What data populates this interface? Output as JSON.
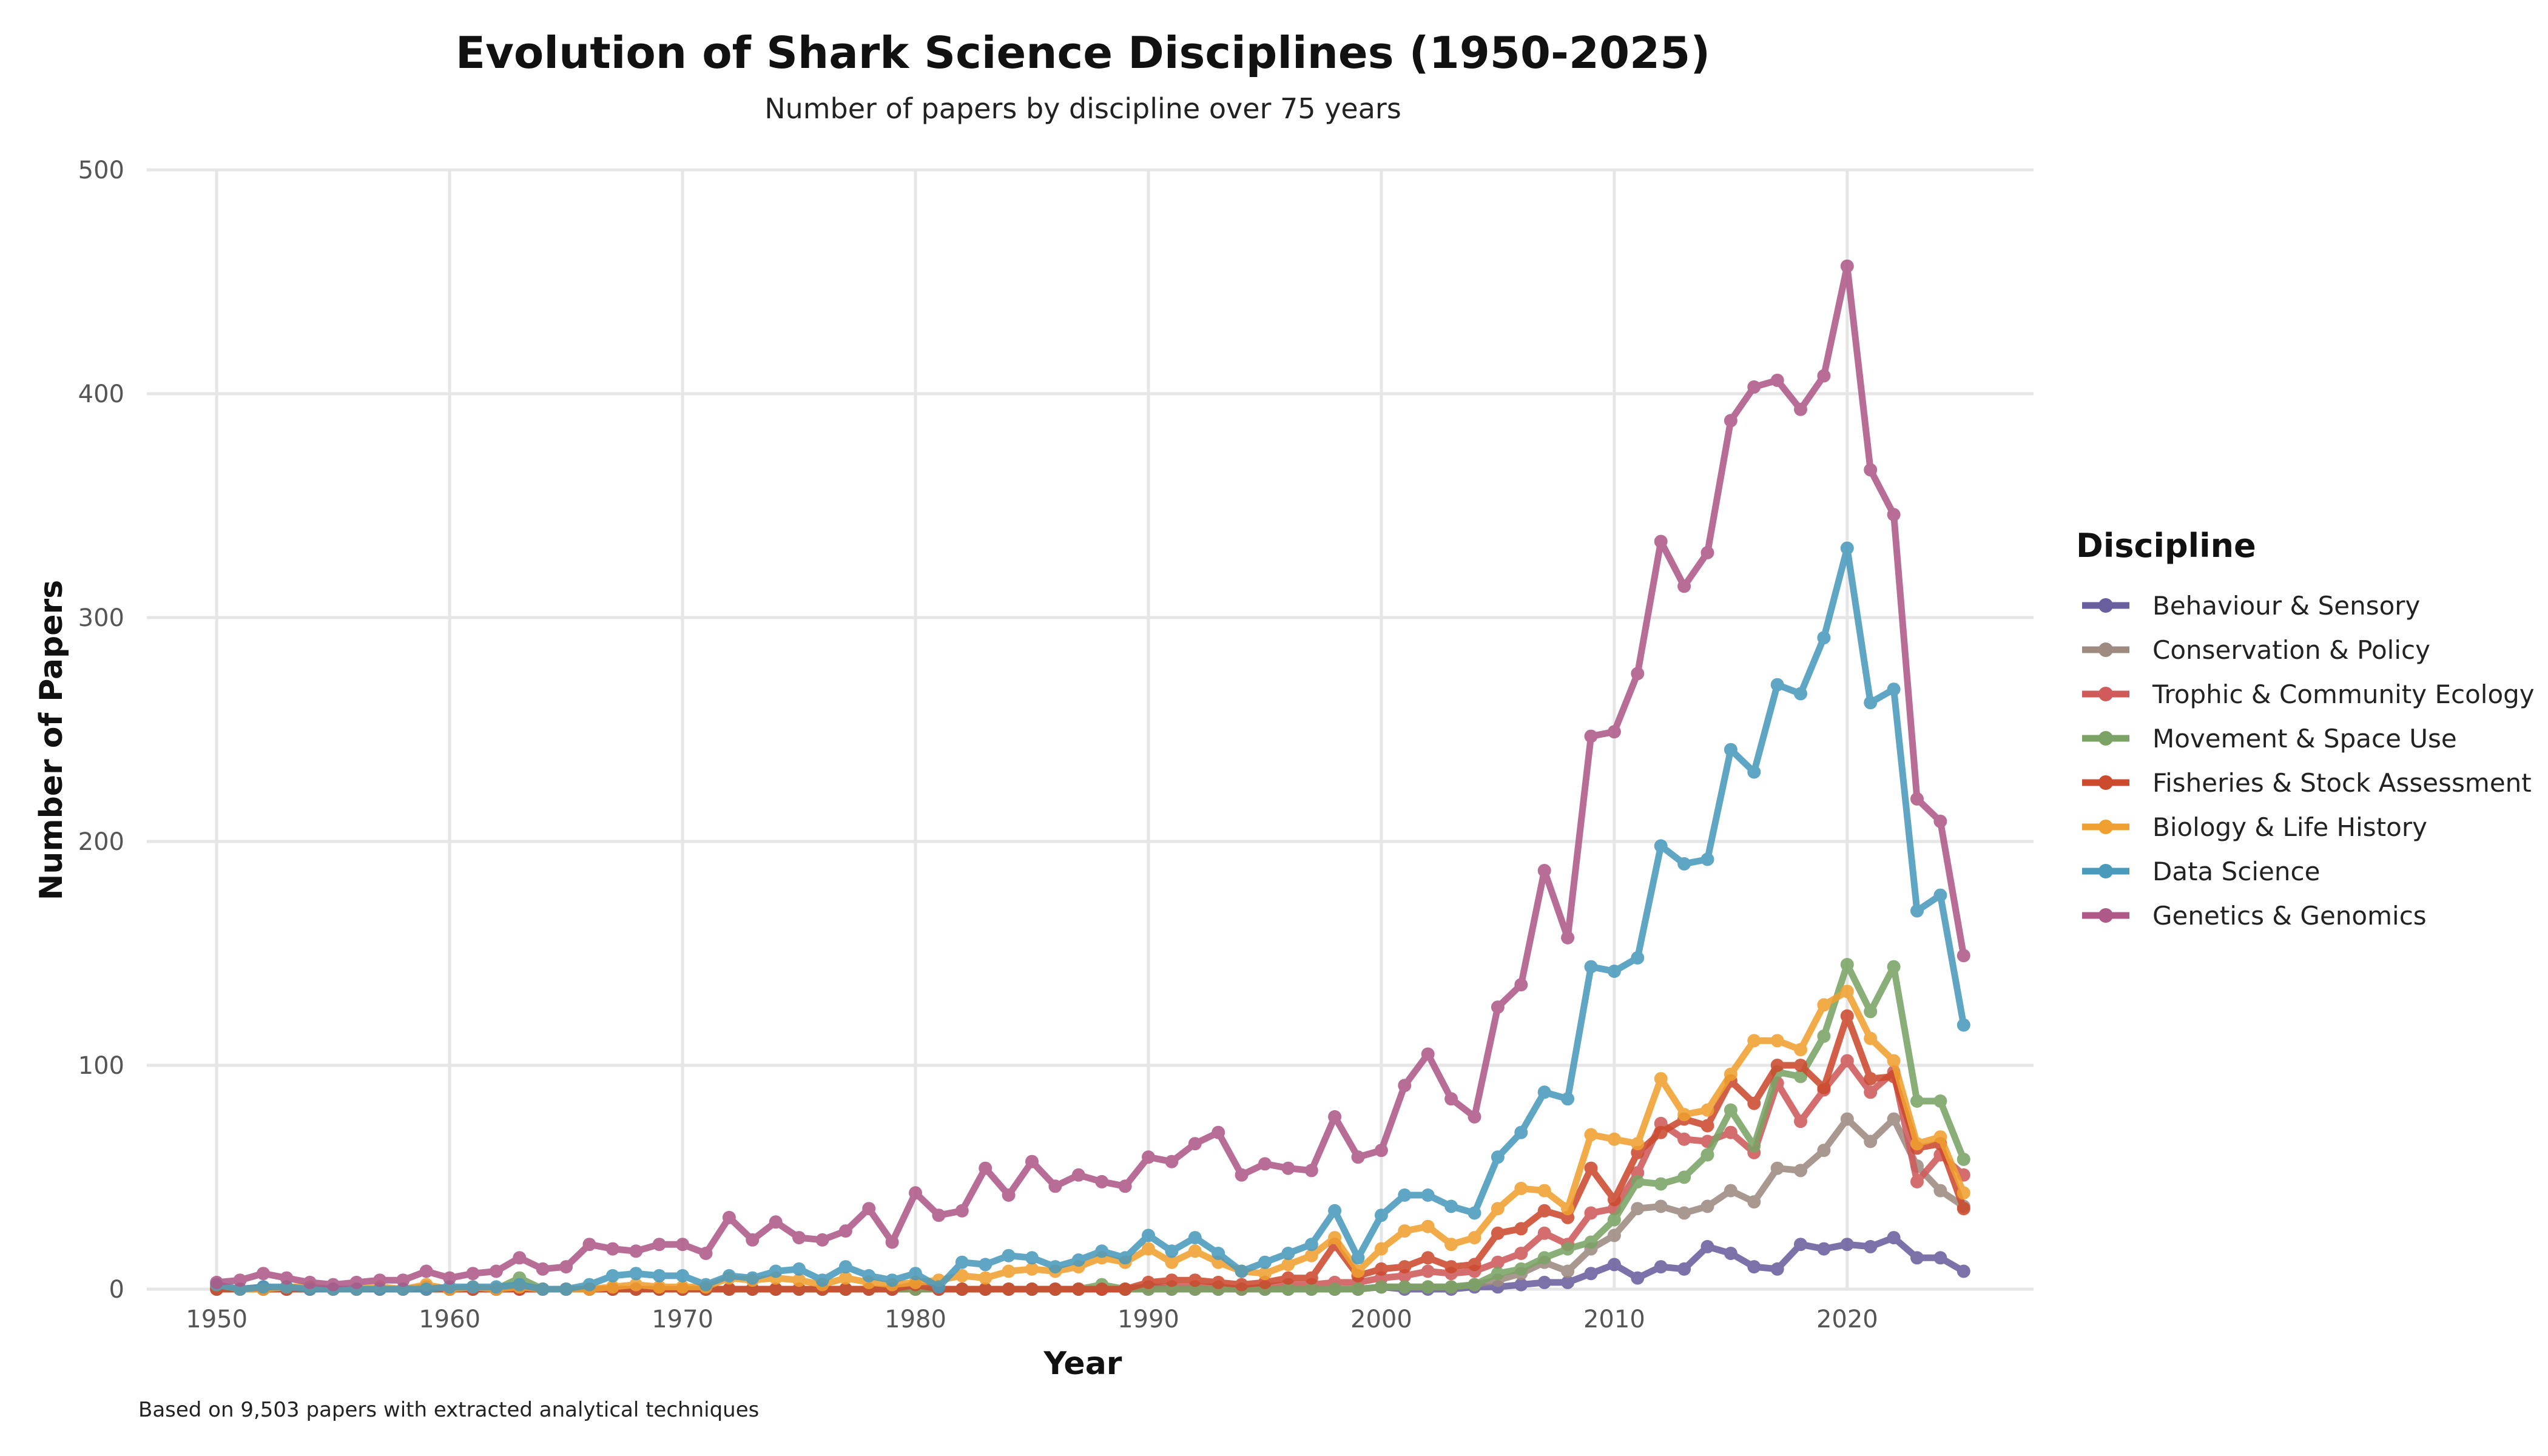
{
  "chart_data": {
    "type": "line",
    "title": "Evolution of Shark Science Disciplines (1950-2025)",
    "subtitle": "Number of papers by discipline over 75 years",
    "xlabel": "Year",
    "ylabel": "Number of Papers",
    "caption": "Based on 9,503 papers with extracted analytical techniques",
    "legend_title": "Discipline",
    "legend_position": "right",
    "grid": true,
    "xlim": [
      1947,
      2028
    ],
    "ylim": [
      0,
      500
    ],
    "x_ticks": [
      1950,
      1960,
      1970,
      1980,
      1990,
      2000,
      2010,
      2020
    ],
    "y_ticks": [
      0,
      100,
      200,
      300,
      400,
      500
    ],
    "x": [
      1950,
      1951,
      1952,
      1953,
      1954,
      1955,
      1956,
      1957,
      1958,
      1959,
      1960,
      1961,
      1962,
      1963,
      1964,
      1965,
      1966,
      1967,
      1968,
      1969,
      1970,
      1971,
      1972,
      1973,
      1974,
      1975,
      1976,
      1977,
      1978,
      1979,
      1980,
      1981,
      1982,
      1983,
      1984,
      1985,
      1986,
      1987,
      1988,
      1989,
      1990,
      1991,
      1992,
      1993,
      1994,
      1995,
      1996,
      1997,
      1998,
      1999,
      2000,
      2001,
      2002,
      2003,
      2004,
      2005,
      2006,
      2007,
      2008,
      2009,
      2010,
      2011,
      2012,
      2013,
      2014,
      2015,
      2016,
      2017,
      2018,
      2019,
      2020,
      2021,
      2022,
      2023,
      2024,
      2025
    ],
    "series": [
      {
        "name": "Behaviour & Sensory",
        "color": "#6a5f9e",
        "values": [
          1,
          0,
          1,
          0,
          0,
          0,
          0,
          0,
          0,
          1,
          0,
          0,
          0,
          1,
          0,
          0,
          0,
          0,
          0,
          0,
          0,
          0,
          0,
          0,
          0,
          0,
          0,
          0,
          0,
          0,
          0,
          0,
          0,
          0,
          0,
          0,
          0,
          0,
          0,
          0,
          1,
          0,
          0,
          0,
          0,
          0,
          0,
          0,
          0,
          0,
          1,
          0,
          0,
          0,
          1,
          1,
          2,
          3,
          3,
          7,
          11,
          5,
          10,
          9,
          19,
          16,
          10,
          9,
          20,
          18,
          20,
          19,
          23,
          14,
          14,
          8
        ]
      },
      {
        "name": "Conservation & Policy",
        "color": "#9e8a80",
        "values": [
          0,
          0,
          0,
          0,
          0,
          0,
          0,
          0,
          0,
          0,
          0,
          0,
          0,
          0,
          0,
          0,
          0,
          0,
          0,
          0,
          0,
          0,
          0,
          0,
          0,
          0,
          0,
          0,
          0,
          0,
          0,
          0,
          0,
          0,
          0,
          0,
          0,
          0,
          0,
          0,
          0,
          0,
          0,
          0,
          0,
          0,
          0,
          0,
          0,
          0,
          1,
          1,
          1,
          1,
          2,
          4,
          7,
          12,
          8,
          18,
          24,
          36,
          37,
          34,
          37,
          44,
          39,
          54,
          53,
          62,
          76,
          66,
          76,
          55,
          44,
          37
        ]
      },
      {
        "name": "Trophic & Community Ecology",
        "color": "#cf5b5b",
        "values": [
          0,
          0,
          0,
          0,
          0,
          0,
          0,
          0,
          0,
          0,
          0,
          0,
          0,
          0,
          0,
          0,
          0,
          0,
          0,
          0,
          0,
          0,
          0,
          0,
          0,
          0,
          0,
          0,
          0,
          0,
          0,
          0,
          0,
          0,
          0,
          0,
          0,
          0,
          0,
          0,
          1,
          1,
          1,
          1,
          0,
          1,
          2,
          2,
          3,
          3,
          5,
          6,
          8,
          7,
          8,
          12,
          16,
          25,
          20,
          34,
          36,
          52,
          74,
          67,
          66,
          70,
          61,
          92,
          75,
          89,
          102,
          88,
          97,
          48,
          60,
          51
        ]
      },
      {
        "name": "Movement & Space Use",
        "color": "#7ba365",
        "values": [
          0,
          0,
          0,
          0,
          0,
          0,
          0,
          0,
          0,
          0,
          0,
          0,
          0,
          5,
          0,
          0,
          0,
          0,
          0,
          0,
          0,
          0,
          0,
          0,
          0,
          0,
          0,
          0,
          0,
          0,
          0,
          0,
          0,
          0,
          0,
          0,
          0,
          0,
          2,
          0,
          0,
          0,
          0,
          0,
          0,
          0,
          0,
          0,
          0,
          0,
          1,
          1,
          1,
          1,
          2,
          7,
          9,
          14,
          18,
          21,
          31,
          48,
          47,
          50,
          60,
          80,
          64,
          97,
          95,
          113,
          145,
          124,
          144,
          84,
          84,
          58
        ]
      },
      {
        "name": "Fisheries & Stock Assessment",
        "color": "#cc4a2e",
        "values": [
          0,
          0,
          0,
          0,
          0,
          0,
          0,
          0,
          0,
          0,
          0,
          0,
          0,
          0,
          0,
          0,
          0,
          0,
          0,
          0,
          0,
          0,
          0,
          0,
          0,
          0,
          0,
          0,
          0,
          0,
          2,
          0,
          0,
          0,
          0,
          0,
          0,
          0,
          0,
          0,
          3,
          4,
          4,
          3,
          2,
          3,
          5,
          5,
          20,
          6,
          9,
          10,
          14,
          10,
          11,
          25,
          27,
          35,
          32,
          54,
          40,
          61,
          70,
          76,
          73,
          93,
          83,
          100,
          100,
          90,
          122,
          94,
          95,
          63,
          65,
          36
        ]
      },
      {
        "name": "Biology & Life History",
        "color": "#f0a030",
        "values": [
          2,
          0,
          0,
          1,
          1,
          0,
          0,
          1,
          0,
          2,
          0,
          1,
          0,
          1,
          0,
          0,
          0,
          1,
          2,
          1,
          1,
          1,
          5,
          4,
          5,
          4,
          2,
          5,
          3,
          2,
          3,
          4,
          6,
          5,
          8,
          9,
          8,
          10,
          14,
          12,
          18,
          12,
          17,
          12,
          8,
          7,
          11,
          15,
          23,
          8,
          18,
          26,
          28,
          20,
          23,
          36,
          45,
          44,
          36,
          69,
          67,
          65,
          94,
          78,
          80,
          96,
          111,
          111,
          107,
          127,
          133,
          112,
          102,
          65,
          68,
          43
        ]
      },
      {
        "name": "Data Science",
        "color": "#4a9abc",
        "values": [
          2,
          0,
          1,
          1,
          0,
          0,
          0,
          0,
          0,
          0,
          1,
          1,
          1,
          2,
          0,
          0,
          2,
          6,
          7,
          6,
          6,
          2,
          6,
          5,
          8,
          9,
          4,
          10,
          6,
          4,
          7,
          1,
          12,
          11,
          15,
          14,
          10,
          13,
          17,
          14,
          24,
          17,
          23,
          16,
          8,
          12,
          16,
          20,
          35,
          14,
          33,
          42,
          42,
          37,
          34,
          59,
          70,
          88,
          85,
          144,
          142,
          148,
          198,
          190,
          192,
          241,
          231,
          270,
          266,
          291,
          331,
          262,
          268,
          169,
          176,
          118
        ]
      },
      {
        "name": "Genetics & Genomics",
        "color": "#ae5988",
        "values": [
          3,
          4,
          7,
          5,
          3,
          2,
          3,
          4,
          4,
          8,
          5,
          7,
          8,
          14,
          9,
          10,
          20,
          18,
          17,
          20,
          20,
          16,
          32,
          22,
          30,
          23,
          22,
          26,
          36,
          21,
          43,
          33,
          35,
          54,
          42,
          57,
          46,
          51,
          48,
          46,
          59,
          57,
          65,
          70,
          51,
          56,
          54,
          53,
          77,
          59,
          62,
          91,
          105,
          85,
          77,
          126,
          136,
          187,
          157,
          247,
          249,
          275,
          334,
          314,
          329,
          388,
          403,
          406,
          393,
          408,
          457,
          366,
          346,
          219,
          209,
          149
        ]
      }
    ]
  }
}
